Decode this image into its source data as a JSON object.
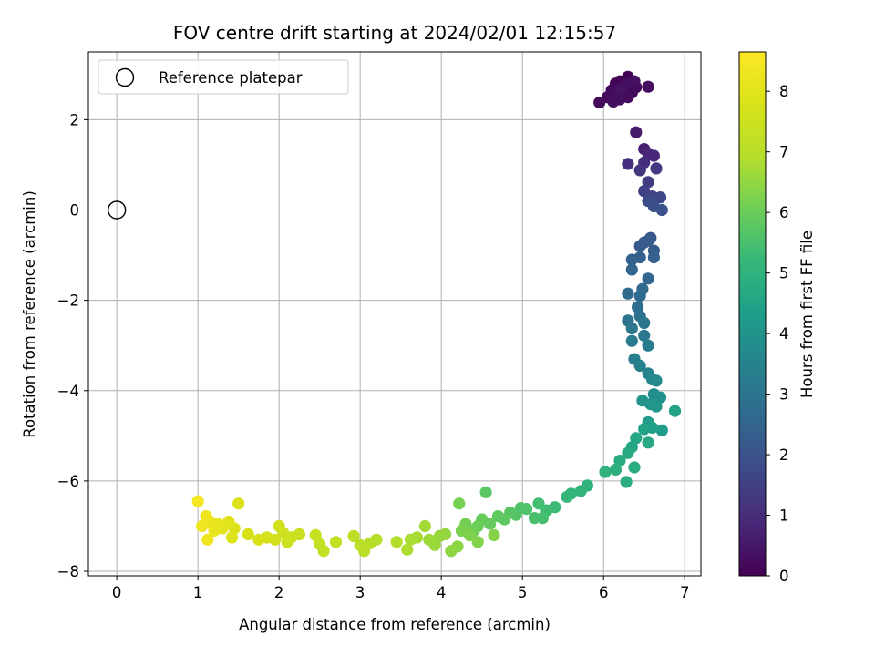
{
  "chart_data": {
    "type": "scatter",
    "title": "FOV centre drift starting at 2024/02/01 12:15:57",
    "xlabel": "Angular distance from reference (arcmin)",
    "ylabel": "Rotation from reference (arcmin)",
    "xlim": [
      -0.35,
      7.2
    ],
    "ylim": [
      -8.1,
      3.5
    ],
    "xticks": [
      0,
      1,
      2,
      3,
      4,
      5,
      6,
      7
    ],
    "yticks": [
      -8,
      -6,
      -4,
      -2,
      0,
      2
    ],
    "xtick_labels": [
      "0",
      "1",
      "2",
      "3",
      "4",
      "5",
      "6",
      "7"
    ],
    "ytick_labels": [
      "−8",
      "−6",
      "−4",
      "−2",
      "0",
      "2"
    ],
    "grid": true,
    "legend": {
      "position": "top-left",
      "entries": [
        "Reference platepar"
      ]
    },
    "colorbar": {
      "label": "Hours from first FF file",
      "colormap": "viridis",
      "range": [
        0,
        8.65
      ],
      "ticks": [
        0,
        1,
        2,
        3,
        4,
        5,
        6,
        7,
        8
      ],
      "tick_labels": [
        "0",
        "1",
        "2",
        "3",
        "4",
        "5",
        "6",
        "7",
        "8"
      ]
    },
    "reference_point": {
      "x": 0,
      "y": 0
    },
    "points": [
      [
        6.2,
        2.85,
        0.03
      ],
      [
        6.3,
        2.95,
        0.06
      ],
      [
        6.15,
        2.8,
        0.08
      ],
      [
        6.25,
        2.7,
        0.1
      ],
      [
        6.1,
        2.65,
        0.12
      ],
      [
        6.35,
        2.6,
        0.14
      ],
      [
        6.2,
        2.55,
        0.16
      ],
      [
        6.05,
        2.5,
        0.18
      ],
      [
        5.95,
        2.38,
        0.2
      ],
      [
        6.4,
        2.72,
        0.22
      ],
      [
        6.3,
        2.5,
        0.24
      ],
      [
        6.15,
        2.62,
        0.26
      ],
      [
        6.55,
        2.73,
        0.28
      ],
      [
        6.2,
        2.45,
        0.3
      ],
      [
        6.28,
        2.78,
        0.32
      ],
      [
        6.12,
        2.4,
        0.34
      ],
      [
        6.38,
        2.85,
        0.36
      ],
      [
        6.22,
        2.68,
        0.38
      ],
      [
        6.4,
        1.72,
        0.6
      ],
      [
        6.5,
        1.35,
        0.7
      ],
      [
        6.55,
        1.25,
        0.8
      ],
      [
        6.62,
        1.2,
        0.9
      ],
      [
        6.5,
        1.05,
        1.0
      ],
      [
        6.3,
        1.02,
        1.1
      ],
      [
        6.45,
        0.88,
        1.2
      ],
      [
        6.65,
        0.92,
        1.3
      ],
      [
        6.55,
        0.62,
        1.4
      ],
      [
        6.5,
        0.42,
        1.5
      ],
      [
        6.6,
        0.3,
        1.6
      ],
      [
        6.7,
        0.28,
        1.7
      ],
      [
        6.55,
        0.2,
        1.8
      ],
      [
        6.62,
        0.08,
        1.9
      ],
      [
        6.72,
        0.0,
        2.0
      ],
      [
        6.58,
        -0.62,
        2.1
      ],
      [
        6.5,
        -0.72,
        2.15
      ],
      [
        6.45,
        -0.8,
        2.2
      ],
      [
        6.55,
        -0.68,
        2.25
      ],
      [
        6.62,
        -0.9,
        2.3
      ],
      [
        6.45,
        -1.05,
        2.35
      ],
      [
        6.62,
        -1.05,
        2.4
      ],
      [
        6.35,
        -1.1,
        2.45
      ],
      [
        6.35,
        -1.32,
        2.5
      ],
      [
        6.55,
        -1.52,
        2.55
      ],
      [
        6.48,
        -1.75,
        2.6
      ],
      [
        6.45,
        -1.9,
        2.65
      ],
      [
        6.3,
        -1.85,
        2.7
      ],
      [
        6.42,
        -2.15,
        2.8
      ],
      [
        6.45,
        -2.35,
        2.9
      ],
      [
        6.3,
        -2.45,
        3.0
      ],
      [
        6.5,
        -2.5,
        3.05
      ],
      [
        6.35,
        -2.62,
        3.1
      ],
      [
        6.5,
        -2.78,
        3.15
      ],
      [
        6.35,
        -2.9,
        3.2
      ],
      [
        6.55,
        -3.0,
        3.25
      ],
      [
        6.38,
        -3.3,
        3.3
      ],
      [
        6.45,
        -3.45,
        3.4
      ],
      [
        6.55,
        -3.62,
        3.5
      ],
      [
        6.6,
        -3.75,
        3.6
      ],
      [
        6.65,
        -3.78,
        3.7
      ],
      [
        6.62,
        -4.08,
        3.8
      ],
      [
        6.7,
        -4.15,
        3.9
      ],
      [
        6.48,
        -4.22,
        4.0
      ],
      [
        6.58,
        -4.3,
        4.05
      ],
      [
        6.65,
        -4.35,
        4.1
      ],
      [
        6.55,
        -4.7,
        4.2
      ],
      [
        6.72,
        -4.88,
        4.3
      ],
      [
        6.6,
        -4.82,
        4.4
      ],
      [
        6.5,
        -4.85,
        4.45
      ],
      [
        6.88,
        -4.45,
        4.5
      ],
      [
        6.4,
        -5.05,
        4.55
      ],
      [
        6.35,
        -5.25,
        4.6
      ],
      [
        6.55,
        -5.15,
        4.65
      ],
      [
        6.3,
        -5.38,
        4.7
      ],
      [
        6.2,
        -5.55,
        4.75
      ],
      [
        6.38,
        -5.7,
        4.8
      ],
      [
        6.28,
        -6.02,
        4.85
      ],
      [
        6.15,
        -5.75,
        4.9
      ],
      [
        6.02,
        -5.8,
        4.95
      ],
      [
        5.8,
        -6.1,
        5.0
      ],
      [
        5.72,
        -6.22,
        5.1
      ],
      [
        5.6,
        -6.28,
        5.15
      ],
      [
        5.55,
        -6.35,
        5.2
      ],
      [
        5.4,
        -6.58,
        5.3
      ],
      [
        5.3,
        -6.65,
        5.35
      ],
      [
        5.2,
        -6.5,
        5.4
      ],
      [
        5.25,
        -6.82,
        5.45
      ],
      [
        5.15,
        -6.82,
        5.5
      ],
      [
        5.05,
        -6.62,
        5.55
      ],
      [
        4.98,
        -6.6,
        5.6
      ],
      [
        4.92,
        -6.75,
        5.65
      ],
      [
        4.85,
        -6.7,
        5.7
      ],
      [
        4.55,
        -6.25,
        5.75
      ],
      [
        4.78,
        -6.85,
        5.8
      ],
      [
        4.7,
        -6.78,
        5.85
      ],
      [
        4.6,
        -6.95,
        5.9
      ],
      [
        4.5,
        -6.85,
        5.95
      ],
      [
        4.45,
        -7.0,
        6.0
      ],
      [
        4.4,
        -7.1,
        6.05
      ],
      [
        4.3,
        -6.95,
        6.1
      ],
      [
        4.22,
        -6.5,
        6.15
      ],
      [
        4.25,
        -7.1,
        6.2
      ],
      [
        4.35,
        -7.2,
        6.25
      ],
      [
        4.45,
        -7.35,
        6.3
      ],
      [
        4.65,
        -7.2,
        6.35
      ],
      [
        4.2,
        -7.45,
        6.4
      ],
      [
        4.12,
        -7.55,
        6.45
      ],
      [
        4.05,
        -7.18,
        6.5
      ],
      [
        3.98,
        -7.22,
        6.55
      ],
      [
        3.92,
        -7.42,
        6.6
      ],
      [
        3.85,
        -7.3,
        6.65
      ],
      [
        3.8,
        -7.0,
        6.7
      ],
      [
        3.7,
        -7.25,
        6.75
      ],
      [
        3.62,
        -7.3,
        6.8
      ],
      [
        3.58,
        -7.52,
        6.85
      ],
      [
        3.45,
        -7.35,
        6.9
      ],
      [
        3.2,
        -7.3,
        6.95
      ],
      [
        3.12,
        -7.38,
        7.0
      ],
      [
        3.05,
        -7.55,
        7.05
      ],
      [
        3.0,
        -7.42,
        7.1
      ],
      [
        2.92,
        -7.22,
        7.15
      ],
      [
        2.7,
        -7.35,
        7.2
      ],
      [
        2.55,
        -7.55,
        7.25
      ],
      [
        2.5,
        -7.4,
        7.3
      ],
      [
        2.45,
        -7.2,
        7.35
      ],
      [
        2.25,
        -7.18,
        7.4
      ],
      [
        2.15,
        -7.25,
        7.45
      ],
      [
        2.1,
        -7.35,
        7.5
      ],
      [
        2.05,
        -7.15,
        7.55
      ],
      [
        2.0,
        -7.0,
        7.6
      ],
      [
        1.95,
        -7.3,
        7.65
      ],
      [
        1.85,
        -7.25,
        7.7
      ],
      [
        1.75,
        -7.3,
        7.75
      ],
      [
        1.62,
        -7.18,
        7.8
      ],
      [
        1.5,
        -6.5,
        7.85
      ],
      [
        1.45,
        -7.05,
        7.9
      ],
      [
        1.42,
        -7.25,
        7.95
      ],
      [
        1.38,
        -6.9,
        8.0
      ],
      [
        1.3,
        -7.05,
        8.05
      ],
      [
        1.25,
        -6.95,
        8.1
      ],
      [
        1.2,
        -7.1,
        8.15
      ],
      [
        1.15,
        -6.9,
        8.2
      ],
      [
        1.1,
        -6.78,
        8.25
      ],
      [
        1.12,
        -7.3,
        8.3
      ],
      [
        1.05,
        -7.0,
        8.35
      ],
      [
        1.0,
        -6.45,
        8.45
      ]
    ]
  }
}
